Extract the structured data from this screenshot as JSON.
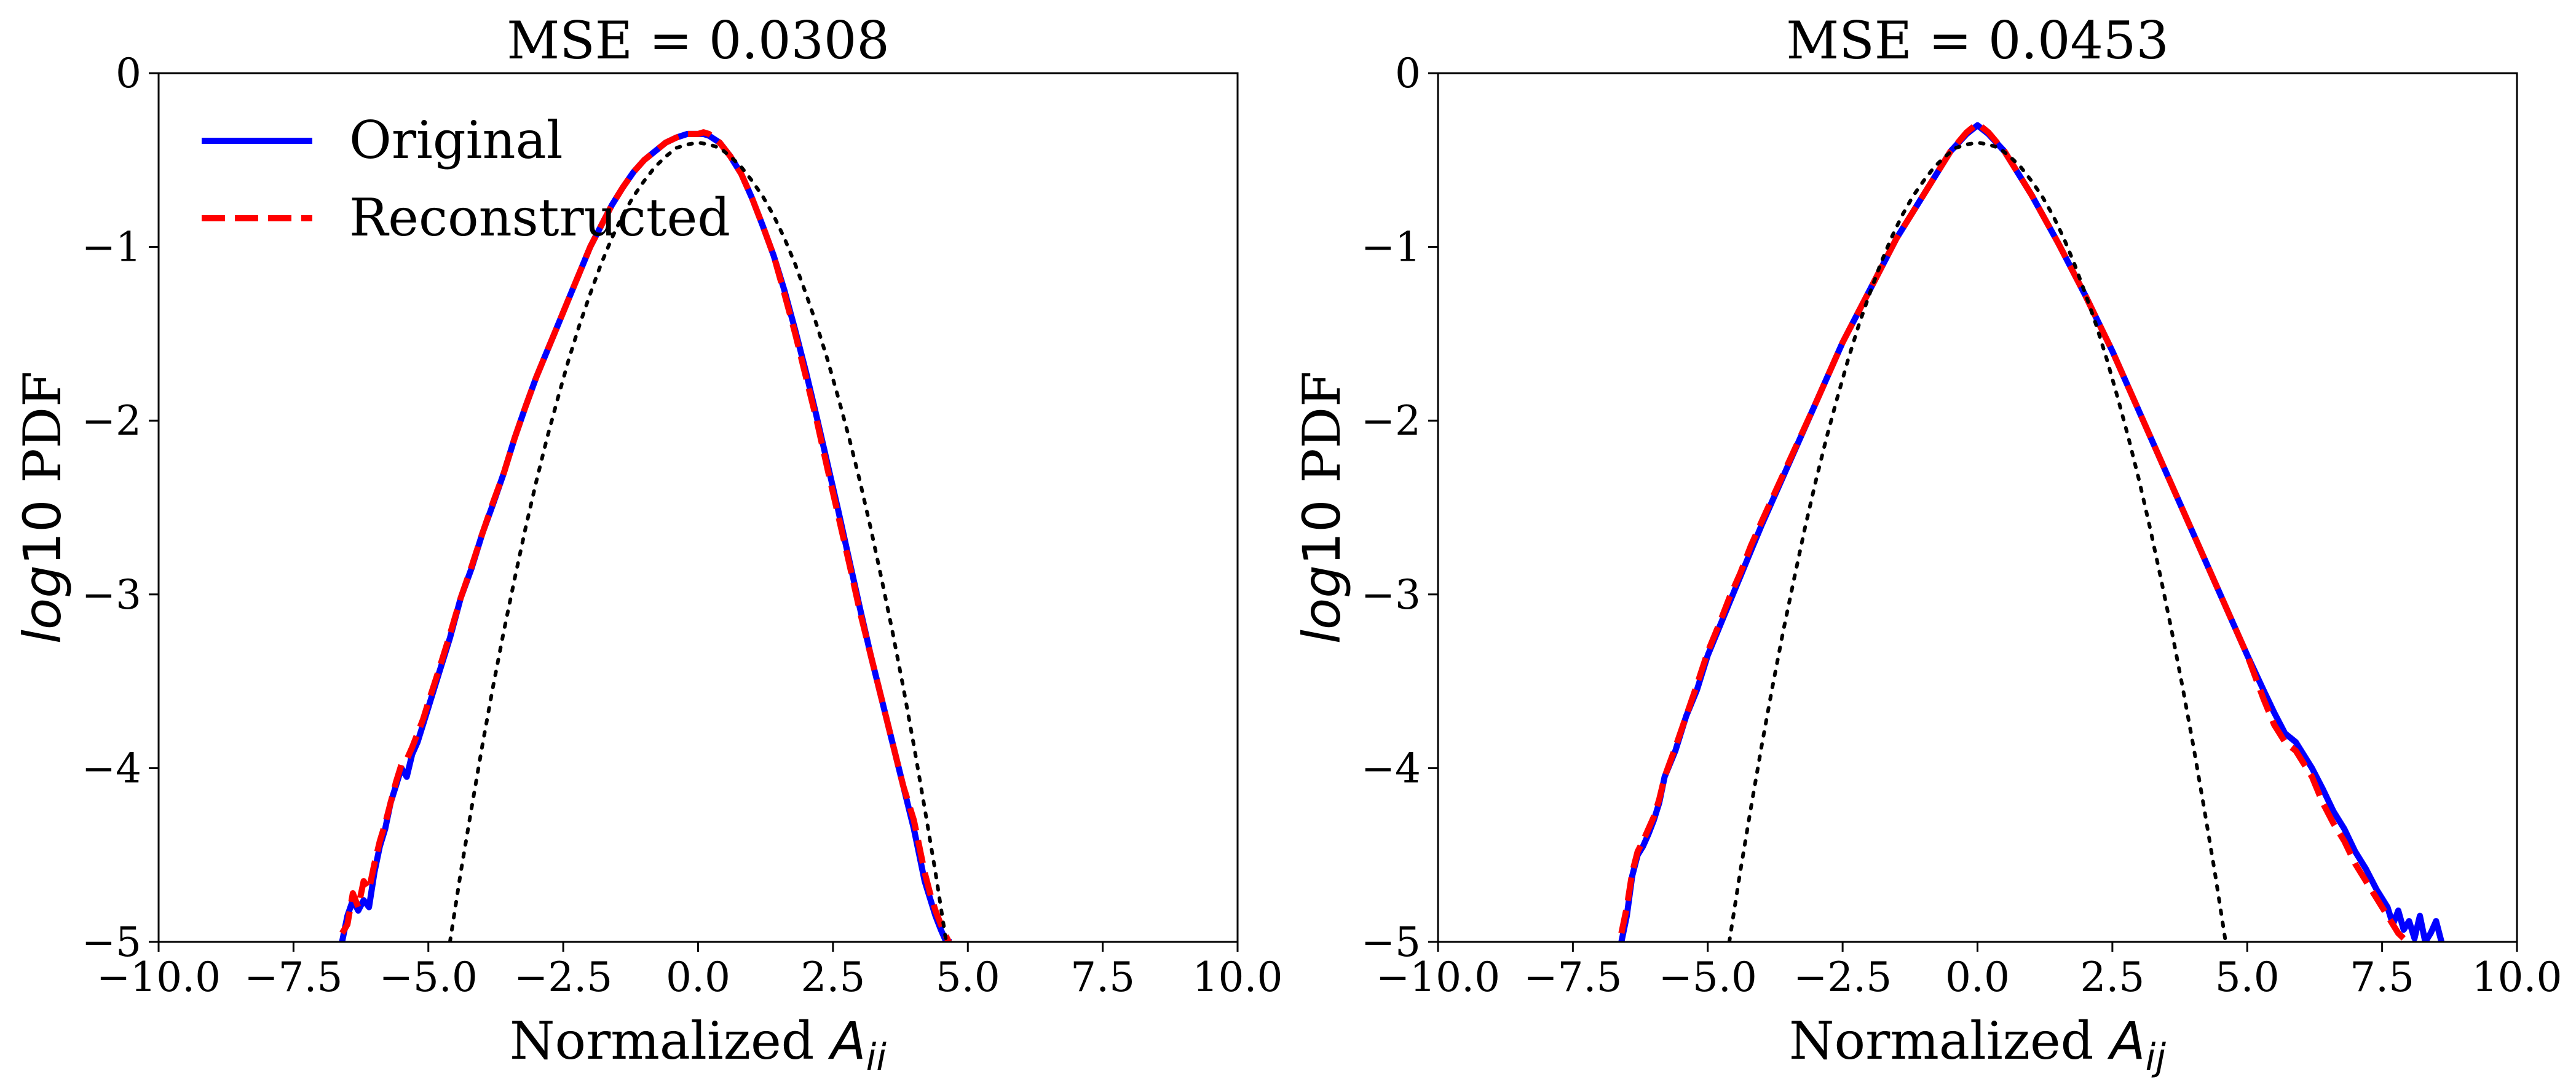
{
  "chart_data": [
    {
      "type": "line",
      "title": "MSE = 0.0308",
      "xlabel": "Normalized ",
      "xlabel_math": "A",
      "xlabel_sub": "ii",
      "ylabel": " PDF",
      "ylabel_math": "log",
      "ylabel_num": "10",
      "xlim": [
        -10,
        10
      ],
      "ylim": [
        -5,
        0
      ],
      "xticks": [
        -10.0,
        -7.5,
        -5.0,
        -2.5,
        0.0,
        2.5,
        5.0,
        7.5,
        10.0
      ],
      "xtick_labels": [
        "−10.0",
        "−7.5",
        "−5.0",
        "−2.5",
        "0.0",
        "2.5",
        "5.0",
        "7.5",
        "10.0"
      ],
      "yticks": [
        0,
        -1,
        -2,
        -3,
        -4,
        -5
      ],
      "ytick_labels": [
        "0",
        "−1",
        "−2",
        "−3",
        "−4",
        "−5"
      ],
      "grid": false,
      "legend_position": "top-left",
      "series": [
        {
          "name": "Original",
          "color": "#0000ff",
          "style": "solid",
          "x": [
            -6.6,
            -6.5,
            -6.4,
            -6.3,
            -6.2,
            -6.1,
            -6.0,
            -5.9,
            -5.8,
            -5.7,
            -5.6,
            -5.5,
            -5.4,
            -5.3,
            -5.2,
            -5.1,
            -5.0,
            -4.8,
            -4.6,
            -4.4,
            -4.2,
            -4.0,
            -3.8,
            -3.6,
            -3.4,
            -3.2,
            -3.0,
            -2.8,
            -2.6,
            -2.4,
            -2.2,
            -2.0,
            -1.8,
            -1.6,
            -1.4,
            -1.2,
            -1.0,
            -0.8,
            -0.6,
            -0.4,
            -0.2,
            0.0,
            0.1,
            0.2,
            0.4,
            0.6,
            0.8,
            1.0,
            1.2,
            1.4,
            1.6,
            1.8,
            2.0,
            2.2,
            2.4,
            2.6,
            2.8,
            3.0,
            3.2,
            3.4,
            3.6,
            3.8,
            4.0,
            4.1,
            4.2,
            4.3,
            4.4,
            4.5,
            4.6,
            4.7
          ],
          "y": [
            -5.0,
            -4.85,
            -4.76,
            -4.82,
            -4.76,
            -4.8,
            -4.6,
            -4.45,
            -4.35,
            -4.2,
            -4.1,
            -4.0,
            -4.05,
            -3.92,
            -3.85,
            -3.75,
            -3.65,
            -3.45,
            -3.25,
            -3.02,
            -2.85,
            -2.65,
            -2.48,
            -2.3,
            -2.1,
            -1.92,
            -1.75,
            -1.6,
            -1.45,
            -1.3,
            -1.15,
            -1.0,
            -0.88,
            -0.76,
            -0.66,
            -0.57,
            -0.5,
            -0.45,
            -0.4,
            -0.37,
            -0.35,
            -0.35,
            -0.35,
            -0.36,
            -0.4,
            -0.48,
            -0.58,
            -0.72,
            -0.88,
            -1.05,
            -1.25,
            -1.48,
            -1.72,
            -1.98,
            -2.25,
            -2.52,
            -2.8,
            -3.08,
            -3.35,
            -3.6,
            -3.85,
            -4.1,
            -4.35,
            -4.5,
            -4.65,
            -4.75,
            -4.85,
            -4.93,
            -5.0,
            -5.0
          ]
        },
        {
          "name": "Reconstructed",
          "color": "#ff0000",
          "style": "dashed",
          "x": [
            -6.6,
            -6.5,
            -6.4,
            -6.3,
            -6.2,
            -6.1,
            -6.0,
            -5.9,
            -5.8,
            -5.7,
            -5.6,
            -5.5,
            -5.4,
            -5.3,
            -5.2,
            -5.1,
            -5.0,
            -4.8,
            -4.6,
            -4.4,
            -4.2,
            -4.0,
            -3.8,
            -3.6,
            -3.4,
            -3.2,
            -3.0,
            -2.8,
            -2.6,
            -2.4,
            -2.2,
            -2.0,
            -1.8,
            -1.6,
            -1.4,
            -1.2,
            -1.0,
            -0.8,
            -0.6,
            -0.4,
            -0.2,
            0.0,
            0.1,
            0.2,
            0.4,
            0.6,
            0.8,
            1.0,
            1.2,
            1.4,
            1.6,
            1.8,
            2.0,
            2.2,
            2.4,
            2.6,
            2.8,
            3.0,
            3.2,
            3.4,
            3.6,
            3.8,
            4.0,
            4.1,
            4.2,
            4.3,
            4.4,
            4.5,
            4.6,
            4.65
          ],
          "y": [
            -4.95,
            -4.9,
            -4.72,
            -4.8,
            -4.65,
            -4.7,
            -4.55,
            -4.42,
            -4.32,
            -4.2,
            -4.08,
            -3.98,
            -3.95,
            -3.88,
            -3.8,
            -3.72,
            -3.62,
            -3.43,
            -3.23,
            -3.02,
            -2.84,
            -2.65,
            -2.47,
            -2.3,
            -2.1,
            -1.92,
            -1.75,
            -1.6,
            -1.45,
            -1.3,
            -1.15,
            -1.0,
            -0.88,
            -0.76,
            -0.66,
            -0.57,
            -0.5,
            -0.45,
            -0.4,
            -0.37,
            -0.35,
            -0.35,
            -0.34,
            -0.35,
            -0.4,
            -0.48,
            -0.58,
            -0.72,
            -0.88,
            -1.05,
            -1.27,
            -1.5,
            -1.75,
            -2.0,
            -2.28,
            -2.55,
            -2.82,
            -3.1,
            -3.35,
            -3.6,
            -3.85,
            -4.1,
            -4.3,
            -4.45,
            -4.6,
            -4.72,
            -4.82,
            -4.9,
            -4.97,
            -5.0
          ]
        },
        {
          "name": "",
          "color": "#000000",
          "style": "dotted",
          "x": [
            -4.6,
            -4.4,
            -4.2,
            -4.0,
            -3.8,
            -3.6,
            -3.4,
            -3.2,
            -3.0,
            -2.8,
            -2.6,
            -2.4,
            -2.2,
            -2.0,
            -1.8,
            -1.6,
            -1.4,
            -1.2,
            -1.0,
            -0.8,
            -0.6,
            -0.4,
            -0.2,
            0.0,
            0.2,
            0.4,
            0.6,
            0.8,
            1.0,
            1.2,
            1.4,
            1.6,
            1.8,
            2.0,
            2.2,
            2.4,
            2.6,
            2.8,
            3.0,
            3.2,
            3.4,
            3.6,
            3.8,
            4.0,
            4.2,
            4.4,
            4.6
          ],
          "y": [
            -5.0,
            -4.6,
            -4.23,
            -3.87,
            -3.53,
            -3.21,
            -2.91,
            -2.62,
            -2.35,
            -2.1,
            -1.87,
            -1.65,
            -1.45,
            -1.27,
            -1.1,
            -0.95,
            -0.82,
            -0.71,
            -0.62,
            -0.54,
            -0.48,
            -0.43,
            -0.41,
            -0.4,
            -0.41,
            -0.43,
            -0.48,
            -0.54,
            -0.62,
            -0.71,
            -0.82,
            -0.95,
            -1.1,
            -1.27,
            -1.45,
            -1.65,
            -1.87,
            -2.1,
            -2.35,
            -2.62,
            -2.91,
            -3.21,
            -3.53,
            -3.87,
            -4.23,
            -4.6,
            -5.0
          ]
        }
      ]
    },
    {
      "type": "line",
      "title": "MSE = 0.0453",
      "xlabel": "Normalized ",
      "xlabel_math": "A",
      "xlabel_sub": "ij",
      "ylabel": " PDF",
      "ylabel_math": "log",
      "ylabel_num": "10",
      "xlim": [
        -10,
        10
      ],
      "ylim": [
        -5,
        0
      ],
      "xticks": [
        -10.0,
        -7.5,
        -5.0,
        -2.5,
        0.0,
        2.5,
        5.0,
        7.5,
        10.0
      ],
      "xtick_labels": [
        "−10.0",
        "−7.5",
        "−5.0",
        "−2.5",
        "0.0",
        "2.5",
        "5.0",
        "7.5",
        "10.0"
      ],
      "yticks": [
        0,
        -1,
        -2,
        -3,
        -4,
        -5
      ],
      "ytick_labels": [
        "0",
        "−1",
        "−2",
        "−3",
        "−4",
        "−5"
      ],
      "grid": false,
      "series": [
        {
          "name": "Original",
          "color": "#0000ff",
          "style": "solid",
          "x": [
            -6.6,
            -6.5,
            -6.4,
            -6.3,
            -6.2,
            -6.1,
            -6.0,
            -5.9,
            -5.8,
            -5.6,
            -5.4,
            -5.2,
            -5.0,
            -4.8,
            -4.6,
            -4.4,
            -4.2,
            -4.0,
            -3.5,
            -3.0,
            -2.5,
            -2.0,
            -1.5,
            -1.0,
            -0.5,
            -0.2,
            0.0,
            0.2,
            0.5,
            1.0,
            1.5,
            2.0,
            2.5,
            3.0,
            3.5,
            4.0,
            4.5,
            5.0,
            5.3,
            5.5,
            5.7,
            5.9,
            6.0,
            6.2,
            6.4,
            6.6,
            6.8,
            7.0,
            7.2,
            7.4,
            7.5,
            7.6,
            7.7,
            7.8,
            7.9,
            8.0,
            8.1,
            8.2,
            8.3,
            8.4,
            8.5,
            8.6
          ],
          "y": [
            -5.0,
            -4.85,
            -4.62,
            -4.5,
            -4.45,
            -4.38,
            -4.3,
            -4.2,
            -4.05,
            -3.9,
            -3.7,
            -3.55,
            -3.35,
            -3.2,
            -3.05,
            -2.9,
            -2.75,
            -2.6,
            -2.25,
            -1.9,
            -1.55,
            -1.25,
            -0.95,
            -0.7,
            -0.45,
            -0.35,
            -0.3,
            -0.35,
            -0.45,
            -0.7,
            -0.98,
            -1.28,
            -1.6,
            -1.95,
            -2.3,
            -2.65,
            -3.0,
            -3.35,
            -3.55,
            -3.68,
            -3.8,
            -3.85,
            -3.9,
            -4.0,
            -4.12,
            -4.25,
            -4.35,
            -4.48,
            -4.58,
            -4.7,
            -4.75,
            -4.8,
            -4.9,
            -4.82,
            -4.93,
            -4.88,
            -4.98,
            -4.85,
            -5.0,
            -4.95,
            -4.88,
            -5.0
          ]
        },
        {
          "name": "Reconstructed",
          "color": "#ff0000",
          "style": "dashed",
          "x": [
            -6.6,
            -6.5,
            -6.4,
            -6.3,
            -6.2,
            -6.1,
            -6.0,
            -5.9,
            -5.8,
            -5.6,
            -5.4,
            -5.2,
            -5.0,
            -4.8,
            -4.6,
            -4.4,
            -4.2,
            -4.0,
            -3.5,
            -3.0,
            -2.5,
            -2.0,
            -1.5,
            -1.0,
            -0.5,
            -0.2,
            0.0,
            0.2,
            0.5,
            1.0,
            1.5,
            2.0,
            2.5,
            3.0,
            3.5,
            4.0,
            4.5,
            5.0,
            5.3,
            5.5,
            5.7,
            5.9,
            6.0,
            6.2,
            6.4,
            6.6,
            6.8,
            7.0,
            7.2,
            7.4,
            7.5,
            7.6,
            7.7,
            7.8,
            7.9,
            8.0
          ],
          "y": [
            -4.95,
            -4.8,
            -4.6,
            -4.48,
            -4.42,
            -4.35,
            -4.28,
            -4.18,
            -4.05,
            -3.88,
            -3.7,
            -3.52,
            -3.33,
            -3.18,
            -3.02,
            -2.88,
            -2.72,
            -2.58,
            -2.24,
            -1.9,
            -1.55,
            -1.25,
            -0.95,
            -0.7,
            -0.45,
            -0.34,
            -0.29,
            -0.34,
            -0.45,
            -0.7,
            -0.98,
            -1.28,
            -1.6,
            -1.95,
            -2.3,
            -2.65,
            -3.0,
            -3.35,
            -3.6,
            -3.75,
            -3.85,
            -3.9,
            -3.95,
            -4.05,
            -4.2,
            -4.32,
            -4.42,
            -4.55,
            -4.65,
            -4.75,
            -4.8,
            -4.85,
            -4.9,
            -4.95,
            -4.98,
            -5.0
          ]
        },
        {
          "name": "",
          "color": "#000000",
          "style": "dotted",
          "x": [
            -4.6,
            -4.4,
            -4.2,
            -4.0,
            -3.8,
            -3.6,
            -3.4,
            -3.2,
            -3.0,
            -2.8,
            -2.6,
            -2.4,
            -2.2,
            -2.0,
            -1.8,
            -1.6,
            -1.4,
            -1.2,
            -1.0,
            -0.8,
            -0.6,
            -0.4,
            -0.2,
            0.0,
            0.2,
            0.4,
            0.6,
            0.8,
            1.0,
            1.2,
            1.4,
            1.6,
            1.8,
            2.0,
            2.2,
            2.4,
            2.6,
            2.8,
            3.0,
            3.2,
            3.4,
            3.6,
            3.8,
            4.0,
            4.2,
            4.4,
            4.6
          ],
          "y": [
            -5.0,
            -4.6,
            -4.23,
            -3.87,
            -3.53,
            -3.21,
            -2.91,
            -2.62,
            -2.35,
            -2.1,
            -1.87,
            -1.65,
            -1.45,
            -1.27,
            -1.1,
            -0.95,
            -0.82,
            -0.71,
            -0.62,
            -0.54,
            -0.48,
            -0.43,
            -0.41,
            -0.4,
            -0.41,
            -0.43,
            -0.48,
            -0.54,
            -0.62,
            -0.71,
            -0.82,
            -0.95,
            -1.1,
            -1.27,
            -1.45,
            -1.65,
            -1.87,
            -2.1,
            -2.35,
            -2.62,
            -2.91,
            -3.21,
            -3.53,
            -3.87,
            -4.23,
            -4.6,
            -5.0
          ]
        }
      ]
    }
  ]
}
